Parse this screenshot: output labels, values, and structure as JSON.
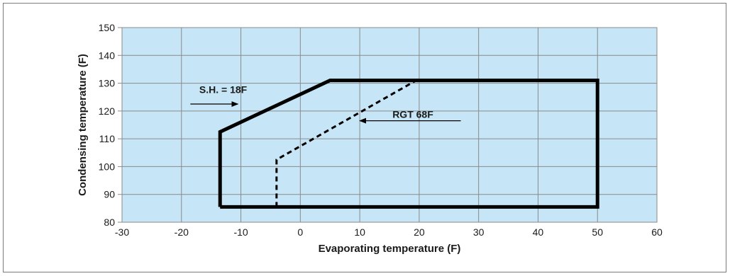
{
  "chart_data": {
    "type": "line",
    "title": "",
    "xlabel": "Evaporating temperature (F)",
    "ylabel": "Condensing temperature (F)",
    "xlim": [
      -30,
      60
    ],
    "ylim": [
      80,
      150
    ],
    "xticks": [
      -30,
      -20,
      -10,
      0,
      10,
      20,
      30,
      40,
      50,
      60
    ],
    "yticks": [
      80,
      90,
      100,
      110,
      120,
      130,
      140,
      150
    ],
    "grid": true,
    "colors": {
      "plot_bg": "#c6e6f7",
      "grid": "#8a8a8a",
      "envelope": "#000000"
    },
    "series": [
      {
        "name": "S.H. = 18F",
        "style": "solid",
        "points": [
          [
            -13.5,
            85.5
          ],
          [
            -13.5,
            112.5
          ],
          [
            5,
            131
          ],
          [
            50,
            131
          ],
          [
            50,
            85.5
          ],
          [
            -13.5,
            85.5
          ]
        ]
      },
      {
        "name": "RGT 68F",
        "style": "dashed",
        "points": [
          [
            -4,
            85.5
          ],
          [
            -4,
            102.5
          ],
          [
            19.5,
            131
          ]
        ]
      }
    ],
    "annotations": [
      {
        "text": "S.H. = 18F",
        "text_at": [
          -17,
          126.5
        ],
        "arrow_from": [
          -18.5,
          122.5
        ],
        "arrow_to": [
          -10.5,
          122.5
        ]
      },
      {
        "text": "RGT 68F",
        "text_at": [
          15.5,
          117.5
        ],
        "arrow_from": [
          27,
          116.5
        ],
        "arrow_to": [
          10,
          116.5
        ]
      }
    ]
  }
}
